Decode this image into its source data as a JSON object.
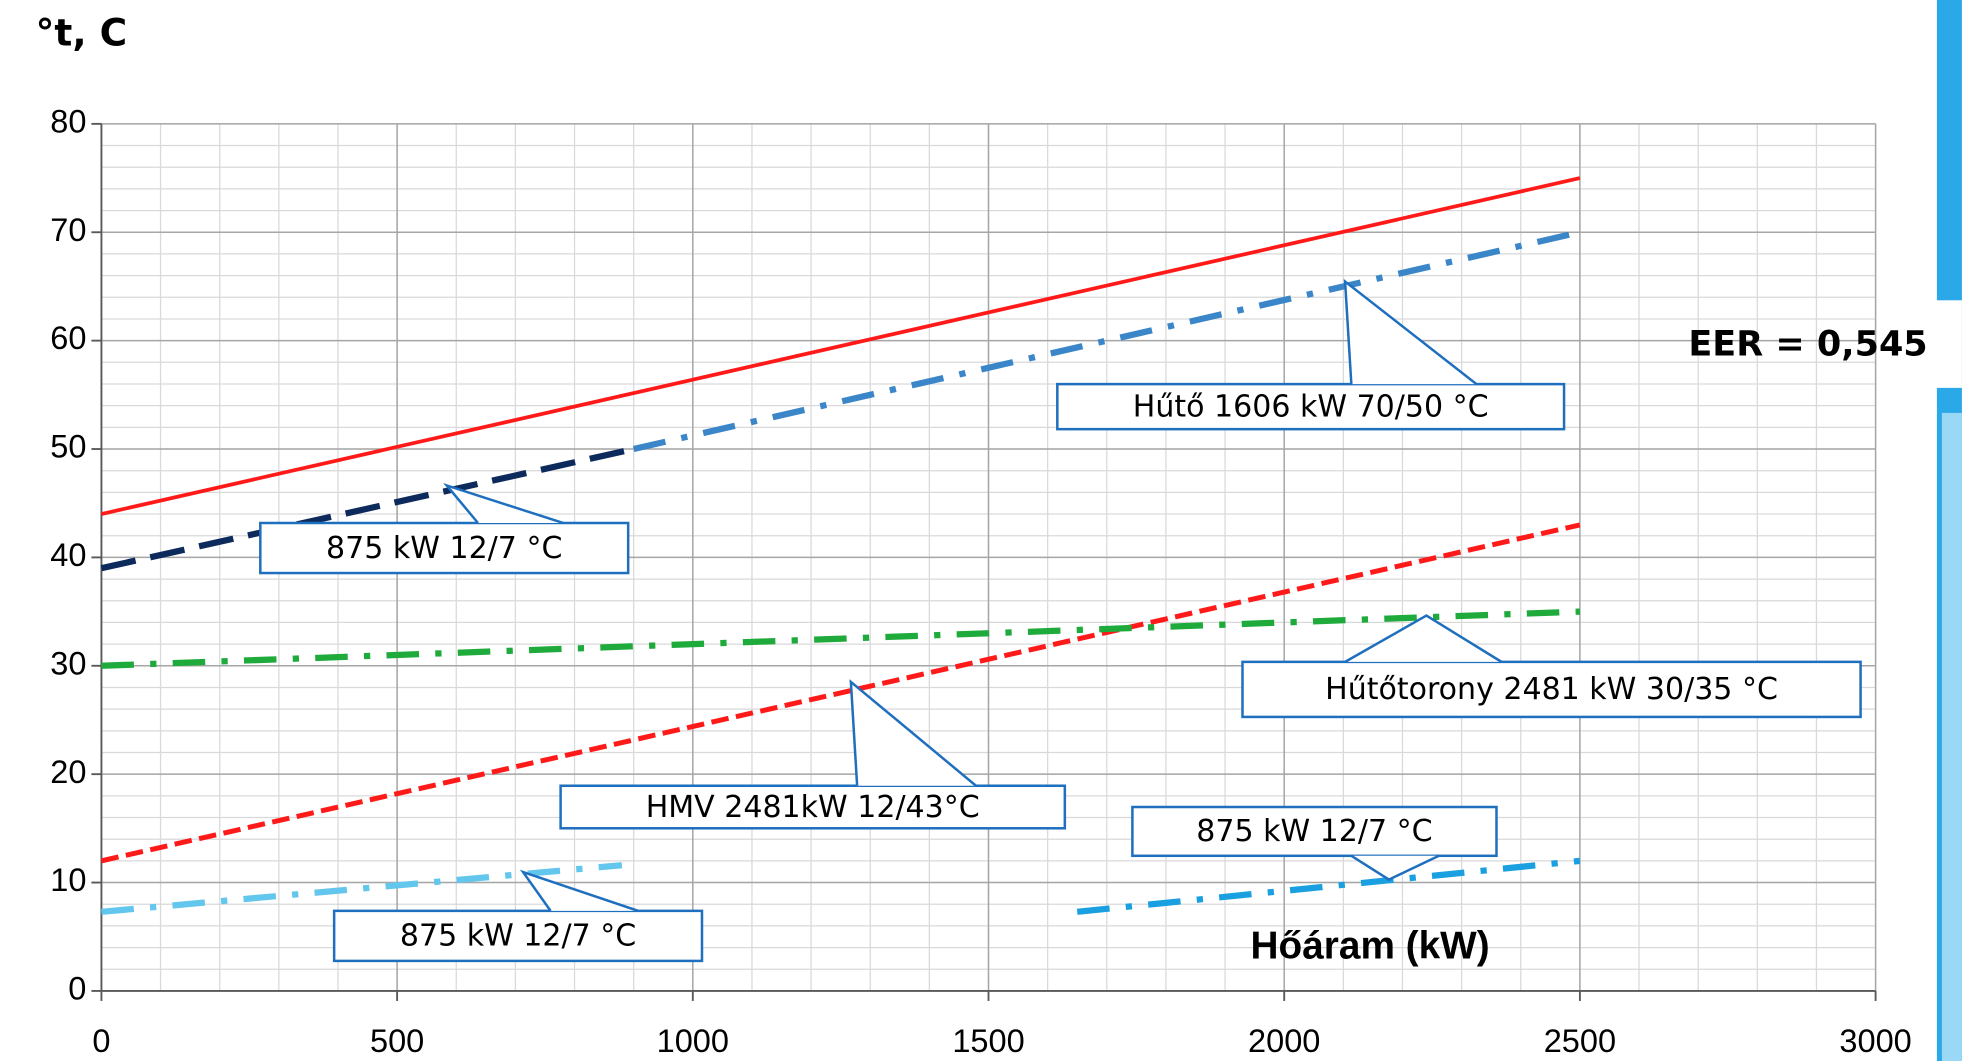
{
  "chart_data": {
    "type": "line",
    "y_label": "°t, C",
    "x_label": "Hőáram (kW)",
    "xlim": [
      0,
      3000
    ],
    "xticks": [
      0,
      500,
      1000,
      1500,
      2000,
      2500,
      3000
    ],
    "ylim": [
      0,
      80
    ],
    "yticks": [
      0,
      10,
      20,
      30,
      40,
      50,
      60,
      70,
      80
    ],
    "grid": true,
    "minor_step_x": 100,
    "minor_step_y": 2,
    "series": [
      {
        "color": "#ff1a1a",
        "style": "solid",
        "x": [
          0,
          2500
        ],
        "values": [
          44,
          75
        ]
      },
      {
        "color": "#0d2a5c",
        "style": "dashed",
        "x": [
          0,
          900
        ],
        "values": [
          39,
          50
        ]
      },
      {
        "color": "#3a86c8",
        "style": "dashdot",
        "x": [
          900,
          2500
        ],
        "values": [
          50,
          70
        ]
      },
      {
        "color": "#ff1a1a",
        "style": "dotted",
        "x": [
          0,
          2500
        ],
        "values": [
          12,
          43
        ]
      },
      {
        "color": "#1faa3c",
        "style": "dashdot",
        "x": [
          0,
          2500
        ],
        "values": [
          30,
          35
        ]
      },
      {
        "color": "#63c6ec",
        "style": "dashdot",
        "x": [
          0,
          880
        ],
        "values": [
          7.3,
          11.6
        ]
      },
      {
        "color": "#1aa0e0",
        "style": "dashdot",
        "x": [
          1650,
          2500
        ],
        "values": [
          7.3,
          12
        ]
      }
    ],
    "annotations": [
      "Hűtő 1606 kW 70/50 °C",
      "875 kW 12/7 °C",
      "Hűtőtorony 2481 kW 30/35 °C",
      "HMV 2481kW 12/43°C",
      "875 kW 12/7 °C",
      "875 kW 12/7 °C"
    ],
    "eer": "EER = 0,545"
  }
}
